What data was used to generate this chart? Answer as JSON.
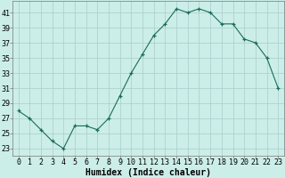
{
  "x": [
    0,
    1,
    2,
    3,
    4,
    5,
    6,
    7,
    8,
    9,
    10,
    11,
    12,
    13,
    14,
    15,
    16,
    17,
    18,
    19,
    20,
    21,
    22,
    23
  ],
  "y": [
    28,
    27,
    25.5,
    24,
    23,
    26,
    26,
    25.5,
    27,
    30,
    33,
    35.5,
    38,
    39.5,
    41.5,
    41,
    41.5,
    41,
    39.5,
    39.5,
    37.5,
    37,
    35,
    31
  ],
  "line_color": "#1a6b5a",
  "marker": "+",
  "marker_color": "#1a6b5a",
  "bg_color": "#cceee8",
  "grid_color": "#aacccc",
  "xlabel": "Humidex (Indice chaleur)",
  "ylabel_ticks": [
    23,
    25,
    27,
    29,
    31,
    33,
    35,
    37,
    39,
    41
  ],
  "xlim": [
    -0.5,
    23.5
  ],
  "ylim": [
    22.0,
    42.5
  ],
  "xticks": [
    0,
    1,
    2,
    3,
    4,
    5,
    6,
    7,
    8,
    9,
    10,
    11,
    12,
    13,
    14,
    15,
    16,
    17,
    18,
    19,
    20,
    21,
    22,
    23
  ],
  "xlabel_fontsize": 7,
  "tick_fontsize": 6
}
